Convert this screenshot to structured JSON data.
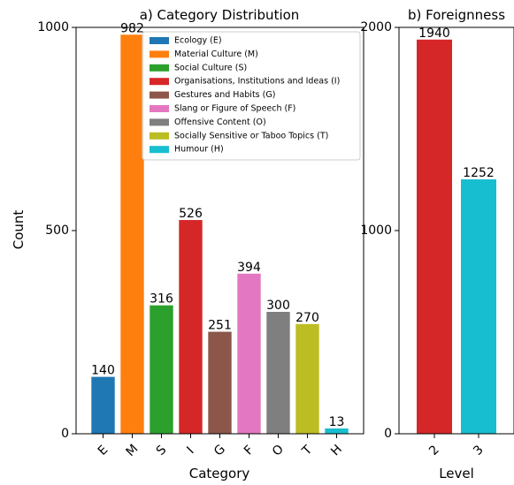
{
  "chart_data": [
    {
      "type": "bar",
      "title": "a) Category Distribution",
      "xlabel": "Category",
      "ylabel": "Count",
      "ylim": [
        0,
        1000
      ],
      "yticks": [
        0,
        500,
        1000
      ],
      "categories": [
        "E",
        "M",
        "S",
        "I",
        "G",
        "F",
        "O",
        "T",
        "H"
      ],
      "values": [
        140,
        982,
        316,
        526,
        251,
        394,
        300,
        270,
        13
      ],
      "value_labels": [
        "140",
        "982",
        "316",
        "526",
        "251",
        "394",
        "300",
        "270",
        "13"
      ],
      "colors": [
        "#1f77b4",
        "#ff7f0e",
        "#2ca02c",
        "#d62728",
        "#8c564b",
        "#e377c2",
        "#7f7f7f",
        "#bcbd22",
        "#17becf"
      ],
      "legend": {
        "placement": "top-right",
        "entries": [
          "Ecology (E)",
          "Material Culture (M)",
          "Social Culture (S)",
          "Organisations, Institutions and Ideas (I)",
          "Gestures and Habits (G)",
          "Slang or Figure of Speech (F)",
          "Offensive Content (O)",
          "Socially Sensitive or Taboo Topics (T)",
          "Humour (H)"
        ]
      }
    },
    {
      "type": "bar",
      "title": "b) Foreignness",
      "xlabel": "Level",
      "ylabel": "",
      "ylim": [
        0,
        2000
      ],
      "yticks": [
        0,
        1000,
        2000
      ],
      "categories": [
        "2",
        "3"
      ],
      "values": [
        1940,
        1252
      ],
      "value_labels": [
        "1940",
        "1252"
      ],
      "colors": [
        "#d62728",
        "#17becf"
      ]
    }
  ]
}
